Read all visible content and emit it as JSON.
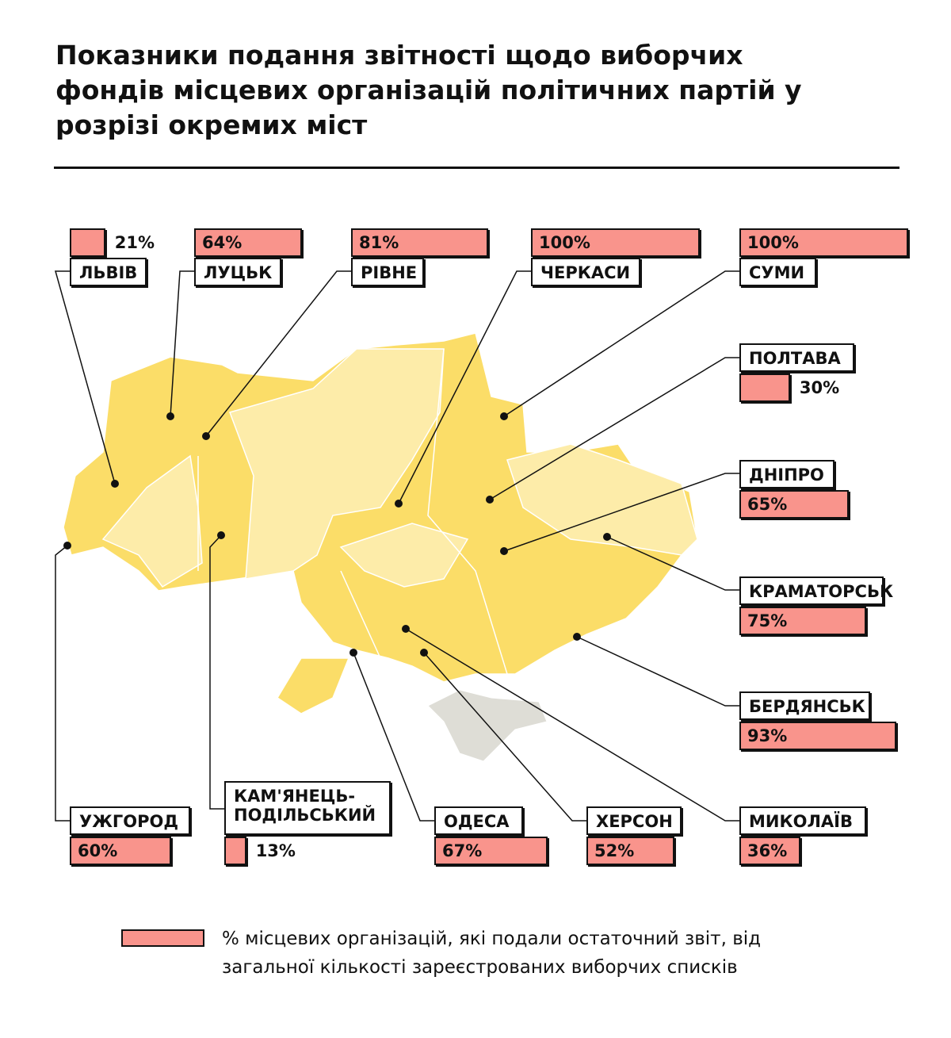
{
  "title": "Показники подання звітності щодо виборчих фондів місцевих організацій політичних партій у розрізі окремих міст",
  "cities": [
    {
      "name": "ЛЬВІВ",
      "value": 21,
      "value_label": "21%"
    },
    {
      "name": "ЛУЦЬК",
      "value": 64,
      "value_label": "64%"
    },
    {
      "name": "РІВНЕ",
      "value": 81,
      "value_label": "81%"
    },
    {
      "name": "ЧЕРКАСИ",
      "value": 100,
      "value_label": "100%"
    },
    {
      "name": "СУМИ",
      "value": 100,
      "value_label": "100%"
    },
    {
      "name": "ПОЛТАВА",
      "value": 30,
      "value_label": "30%"
    },
    {
      "name": "ДНІПРО",
      "value": 65,
      "value_label": "65%"
    },
    {
      "name": "КРАМАТОРСЬК",
      "value": 75,
      "value_label": "75%"
    },
    {
      "name": "БЕРДЯНСЬК",
      "value": 93,
      "value_label": "93%"
    },
    {
      "name": "УЖГОРОД",
      "value": 60,
      "value_label": "60%"
    },
    {
      "name": "КАМ'ЯНЕЦЬ-ПОДІЛЬСЬКИЙ",
      "value": 13,
      "value_label": "13%"
    },
    {
      "name": "ОДЕСА",
      "value": 67,
      "value_label": "67%"
    },
    {
      "name": "ХЕРСОН",
      "value": 52,
      "value_label": "52%"
    },
    {
      "name": "МИКОЛАЇВ",
      "value": 36,
      "value_label": "36%"
    }
  ],
  "legend": "% місцевих організацій, які подали остаточний звіт, від загальної кількості зареєстрованих виборчих списків"
}
